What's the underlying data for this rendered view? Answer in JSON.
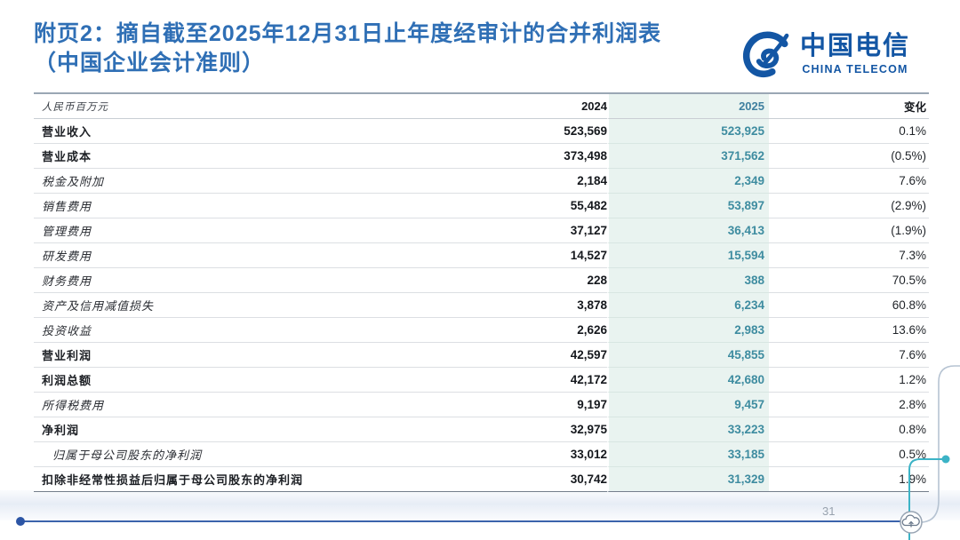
{
  "slide": {
    "title_line1": "附页2：摘自截至2025年12月31日止年度经审计的合并利润表",
    "title_line2": "（中国企业会计准则）",
    "page_number": "31"
  },
  "logo": {
    "name_cn": "中国电信",
    "name_en": "CHINA TELECOM",
    "brand_color": "#1356a4"
  },
  "icons": {
    "logo_icon": "china-telecom-logo-icon",
    "cloud_icon": "cloud-upload-icon"
  },
  "decor": {
    "title_color": "#2f6fb5",
    "highlight_band_color": "#e9f3f0",
    "value_2025_color": "#3e8ca0",
    "accent_line_color": "#3b63ab",
    "teal_decor_color": "#3cb3c6",
    "gray_decor_color": "#b6c3d2"
  },
  "table": {
    "unit_label": "人民币百万元",
    "columns": [
      "2024",
      "2025",
      "变化"
    ],
    "rows": [
      {
        "label": "营业收入",
        "v2024": "523,569",
        "v2025": "523,925",
        "change": "0.1%",
        "bold": true,
        "indent": false
      },
      {
        "label": "营业成本",
        "v2024": "373,498",
        "v2025": "371,562",
        "change": "(0.5%)",
        "bold": true,
        "indent": false
      },
      {
        "label": "税金及附加",
        "v2024": "2,184",
        "v2025": "2,349",
        "change": "7.6%",
        "bold": false,
        "indent": false
      },
      {
        "label": "销售费用",
        "v2024": "55,482",
        "v2025": "53,897",
        "change": "(2.9%)",
        "bold": false,
        "indent": false
      },
      {
        "label": "管理费用",
        "v2024": "37,127",
        "v2025": "36,413",
        "change": "(1.9%)",
        "bold": false,
        "indent": false
      },
      {
        "label": "研发费用",
        "v2024": "14,527",
        "v2025": "15,594",
        "change": "7.3%",
        "bold": false,
        "indent": false
      },
      {
        "label": "财务费用",
        "v2024": "228",
        "v2025": "388",
        "change": "70.5%",
        "bold": false,
        "indent": false
      },
      {
        "label": "资产及信用减值损失",
        "v2024": "3,878",
        "v2025": "6,234",
        "change": "60.8%",
        "bold": false,
        "indent": false
      },
      {
        "label": "投资收益",
        "v2024": "2,626",
        "v2025": "2,983",
        "change": "13.6%",
        "bold": false,
        "indent": false
      },
      {
        "label": "营业利润",
        "v2024": "42,597",
        "v2025": "45,855",
        "change": "7.6%",
        "bold": true,
        "indent": false
      },
      {
        "label": "利润总额",
        "v2024": "42,172",
        "v2025": "42,680",
        "change": "1.2%",
        "bold": true,
        "indent": false
      },
      {
        "label": "所得税费用",
        "v2024": "9,197",
        "v2025": "9,457",
        "change": "2.8%",
        "bold": false,
        "indent": false
      },
      {
        "label": "净利润",
        "v2024": "32,975",
        "v2025": "33,223",
        "change": "0.8%",
        "bold": true,
        "indent": false
      },
      {
        "label": "归属于母公司股东的净利润",
        "v2024": "33,012",
        "v2025": "33,185",
        "change": "0.5%",
        "bold": false,
        "indent": true
      },
      {
        "label": "扣除非经常性损益后归属于母公司股东的净利润",
        "v2024": "30,742",
        "v2025": "31,329",
        "change": "1.9%",
        "bold": true,
        "indent": false
      }
    ]
  }
}
